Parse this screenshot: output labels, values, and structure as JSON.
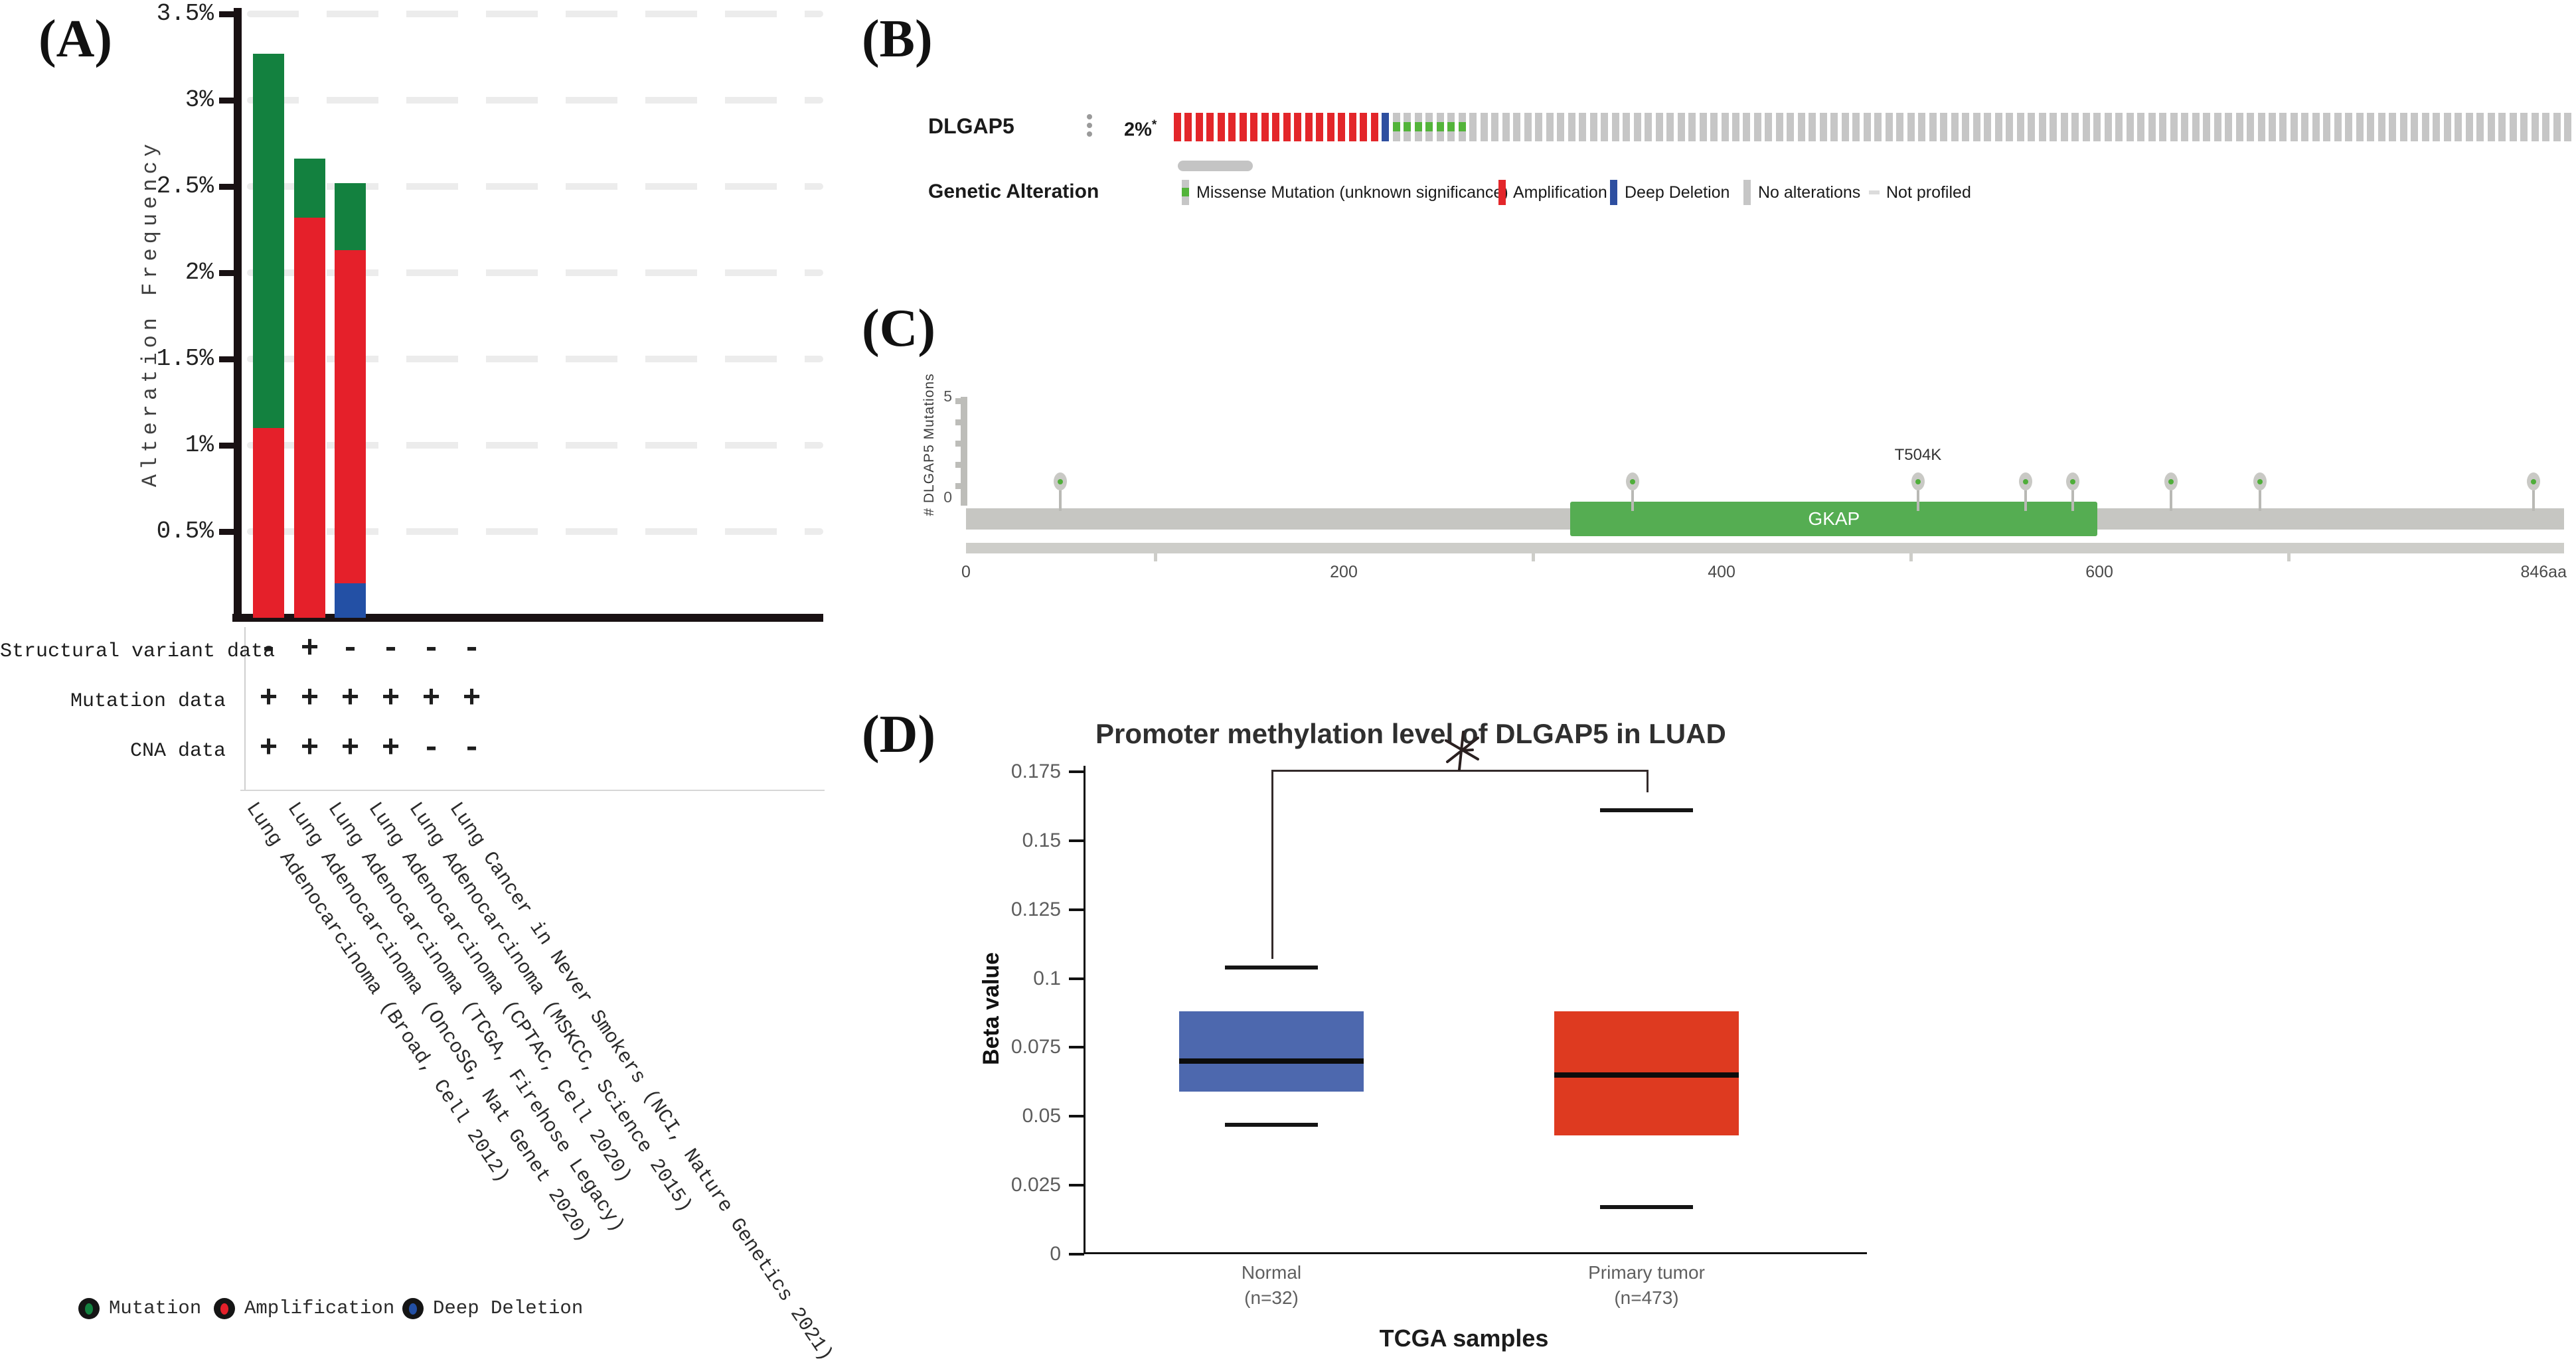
{
  "panels": {
    "a": {
      "label": "(A)",
      "y_axis_title": "Alteration Frequency",
      "tick_labels": [
        "3.5%",
        "3%",
        "2.5%",
        "2%",
        "1.5%",
        "1%",
        "0.5%"
      ],
      "tick_values": [
        3.5,
        3,
        2.5,
        2,
        1.5,
        1,
        0.5
      ],
      "tracks": [
        {
          "label": "Structural variant data",
          "flags": [
            "-",
            "+",
            "-",
            "-",
            "-",
            "-"
          ]
        },
        {
          "label": "Mutation data",
          "flags": [
            "+",
            "+",
            "+",
            "+",
            "+",
            "+"
          ]
        },
        {
          "label": "CNA data",
          "flags": [
            "+",
            "+",
            "+",
            "+",
            "-",
            "-"
          ]
        }
      ],
      "legend": [
        {
          "label": "Mutation",
          "color": "#13813f"
        },
        {
          "label": "Amplification",
          "color": "#e5202a"
        },
        {
          "label": "Deep Deletion",
          "color": "#2350a5"
        }
      ]
    },
    "b": {
      "label": "(B)",
      "gene": "DLGAP5",
      "alteration_frequency": "2%",
      "frequency_superscript": "*",
      "menu_icon": "kebab-menu-icon",
      "genetic_alteration_label": "Genetic Alteration",
      "legend": [
        {
          "label": "Missense Mutation (unknown significance)",
          "icon": "missense-tick-icon"
        },
        {
          "label": "Amplification",
          "icon": "amplification-bar-icon",
          "color": "#e3262a"
        },
        {
          "label": "Deep Deletion",
          "icon": "deep-deletion-bar-icon",
          "color": "#2e4fa0"
        },
        {
          "label": "No alterations",
          "icon": "no-alterations-bar-icon",
          "color": "#c6c6c6"
        },
        {
          "label": "Not profiled",
          "icon": "not-profiled-dash-icon",
          "color": "#dcdcdc"
        }
      ]
    },
    "c": {
      "label": "(C)",
      "y_axis": {
        "top": "5",
        "bottom": "0"
      }
    },
    "d": {
      "label": "(D)",
      "significance": "*"
    }
  },
  "chart_data": [
    {
      "id": "alteration-frequency-bar",
      "type": "bar",
      "stacked": true,
      "ylabel": "Alteration Frequency",
      "ylim": [
        0,
        3.5
      ],
      "yticks": [
        0.5,
        1,
        1.5,
        2,
        2.5,
        3,
        3.5
      ],
      "grid": "dashed",
      "legend_position": "bottom",
      "categories": [
        "Lung Adenocarcinoma (Broad, Cell 2012)",
        "Lung Adenocarcinoma (OncoSG, Nat Genet 2020)",
        "Lung Adenocarcinoma (TCGA, Firehose Legacy)",
        "Lung Adenocarcinoma (CPTAC, Cell 2020)",
        "Lung Adenocarcinoma (MSKCC, Science 2015)",
        "Lung Cancer in Never Smokers (NCI, Nature Genetics 2021)"
      ],
      "series": [
        {
          "name": "Deep Deletion",
          "color": "#2350a5",
          "values": [
            0,
            0,
            0.2,
            0,
            0,
            0
          ]
        },
        {
          "name": "Amplification",
          "color": "#e5202a",
          "values": [
            1.1,
            2.32,
            1.93,
            0,
            0,
            0
          ]
        },
        {
          "name": "Mutation",
          "color": "#13813f",
          "values": [
            2.17,
            0.34,
            0.39,
            0,
            0,
            0
          ]
        }
      ],
      "totals_percent": [
        3.27,
        2.66,
        2.52,
        0,
        0,
        0
      ]
    },
    {
      "id": "dlgap5-oncoprint",
      "type": "oncoprint",
      "gene": "DLGAP5",
      "altered_frequency": "2%",
      "segments": [
        {
          "type": "Amplification",
          "color": "#e3262a",
          "count": 19
        },
        {
          "type": "Deep Deletion",
          "color": "#2e4fa0",
          "count": 1
        },
        {
          "type": "Missense Mutation (unknown significance)",
          "color": "#c6c6c6",
          "accent": "#53b43a",
          "count": 7
        },
        {
          "type": "No alterations",
          "color": "#c6c6c6",
          "count": 101
        }
      ]
    },
    {
      "id": "dlgap5-lollipop",
      "type": "lollipop",
      "ylabel": "# DLGAP5 Mutations",
      "ylim": [
        0,
        5
      ],
      "xmax": 846,
      "xtick_labels": [
        "0",
        "200",
        "400",
        "600",
        "846aa"
      ],
      "xtick_values": [
        0,
        200,
        400,
        600,
        846
      ],
      "minor_tick_values": [
        100,
        300,
        500,
        700
      ],
      "domains": [
        {
          "name": "GKAP",
          "start": 320,
          "end": 599,
          "color": "#55ad52"
        }
      ],
      "mutations": [
        {
          "aa": 50,
          "count": 1
        },
        {
          "aa": 353,
          "count": 1
        },
        {
          "aa": 504,
          "count": 1,
          "label": "T504K"
        },
        {
          "aa": 561,
          "count": 1
        },
        {
          "aa": 586,
          "count": 1
        },
        {
          "aa": 638,
          "count": 1
        },
        {
          "aa": 685,
          "count": 1
        },
        {
          "aa": 830,
          "count": 1
        }
      ]
    },
    {
      "id": "dlgap5-methylation-box",
      "type": "box",
      "title": "Promoter methylation level of DLGAP5 in LUAD",
      "ylabel": "Beta value",
      "xlabel": "TCGA samples",
      "ylim": [
        0,
        0.175
      ],
      "yticks": [
        0,
        0.025,
        0.05,
        0.075,
        0.1,
        0.125,
        0.15,
        0.175
      ],
      "ytick_labels": [
        "0",
        "0.025",
        "0.05",
        "0.075",
        "0.1",
        "0.125",
        "0.15",
        "0.175"
      ],
      "significance": "*",
      "groups": [
        {
          "name": "Normal",
          "n_label": "(n=32)",
          "color": "#4d68ae",
          "whisker_low": 0.047,
          "q1": 0.059,
          "median": 0.07,
          "q3": 0.088,
          "whisker_high": 0.104
        },
        {
          "name": "Primary tumor",
          "n_label": "(n=473)",
          "color": "#de3a20",
          "whisker_low": 0.017,
          "q1": 0.043,
          "median": 0.065,
          "q3": 0.088,
          "whisker_high": 0.161
        }
      ]
    }
  ]
}
